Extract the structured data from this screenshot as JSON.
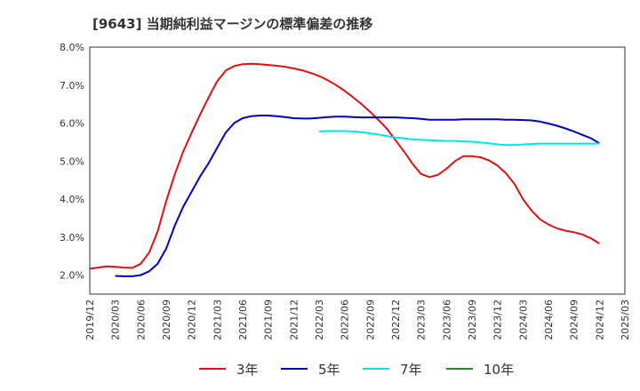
{
  "title": "[9643]  当期純利益マージンの標準偏差の推移",
  "chart_data": {
    "type": "line",
    "title": "[9643]  当期純利益マージンの標準偏差の推移",
    "xlabel": "",
    "ylabel": "",
    "ylim": [
      1.5,
      8.0
    ],
    "yticks": [
      2.0,
      3.0,
      4.0,
      5.0,
      6.0,
      7.0,
      8.0
    ],
    "ytick_labels": [
      "2.0%",
      "3.0%",
      "4.0%",
      "5.0%",
      "6.0%",
      "7.0%",
      "8.0%"
    ],
    "xticks": [
      "2019/12",
      "2020/03",
      "2020/06",
      "2020/09",
      "2020/12",
      "2021/03",
      "2021/06",
      "2021/09",
      "2021/12",
      "2022/03",
      "2022/06",
      "2022/09",
      "2022/12",
      "2023/03",
      "2023/06",
      "2023/09",
      "2023/12",
      "2024/03",
      "2024/06",
      "2024/09",
      "2024/12",
      "2025/03"
    ],
    "grid": true,
    "legend_position": "bottom",
    "series": [
      {
        "name": "3年",
        "color": "#dd1111",
        "x": [
          "2019/12",
          "2020/01",
          "2020/02",
          "2020/03",
          "2020/04",
          "2020/05",
          "2020/06",
          "2020/07",
          "2020/08",
          "2020/09",
          "2020/10",
          "2020/11",
          "2020/12",
          "2021/01",
          "2021/02",
          "2021/03",
          "2021/04",
          "2021/05",
          "2021/06",
          "2021/07",
          "2021/08",
          "2021/09",
          "2021/10",
          "2021/11",
          "2021/12",
          "2022/01",
          "2022/02",
          "2022/03",
          "2022/04",
          "2022/05",
          "2022/06",
          "2022/07",
          "2022/08",
          "2022/09",
          "2022/10",
          "2022/11",
          "2022/12",
          "2023/01",
          "2023/02",
          "2023/03",
          "2023/04",
          "2023/05",
          "2023/06",
          "2023/07",
          "2023/08",
          "2023/09",
          "2023/10",
          "2023/11",
          "2023/12",
          "2024/01",
          "2024/02",
          "2024/03",
          "2024/04",
          "2024/05",
          "2024/06",
          "2024/07",
          "2024/08",
          "2024/09",
          "2024/10",
          "2024/11",
          "2024/12"
        ],
        "values": [
          2.17,
          2.2,
          2.23,
          2.22,
          2.2,
          2.19,
          2.3,
          2.6,
          3.15,
          3.95,
          4.65,
          5.25,
          5.75,
          6.23,
          6.68,
          7.1,
          7.38,
          7.5,
          7.55,
          7.56,
          7.55,
          7.53,
          7.51,
          7.48,
          7.44,
          7.39,
          7.32,
          7.24,
          7.13,
          7.0,
          6.85,
          6.68,
          6.5,
          6.3,
          6.08,
          5.85,
          5.55,
          5.25,
          4.93,
          4.66,
          4.58,
          4.64,
          4.8,
          5.0,
          5.13,
          5.13,
          5.1,
          5.02,
          4.88,
          4.68,
          4.4,
          4.0,
          3.7,
          3.47,
          3.33,
          3.23,
          3.17,
          3.13,
          3.07,
          2.97,
          2.83
        ]
      },
      {
        "name": "5年",
        "color": "#0000bb",
        "x": [
          "2020/03",
          "2020/04",
          "2020/05",
          "2020/06",
          "2020/07",
          "2020/08",
          "2020/09",
          "2020/10",
          "2020/11",
          "2020/12",
          "2021/01",
          "2021/02",
          "2021/03",
          "2021/04",
          "2021/05",
          "2021/06",
          "2021/07",
          "2021/08",
          "2021/09",
          "2021/10",
          "2021/11",
          "2021/12",
          "2022/01",
          "2022/02",
          "2022/03",
          "2022/04",
          "2022/05",
          "2022/06",
          "2022/07",
          "2022/08",
          "2022/09",
          "2022/10",
          "2022/11",
          "2022/12",
          "2023/01",
          "2023/02",
          "2023/03",
          "2023/04",
          "2023/05",
          "2023/06",
          "2023/07",
          "2023/08",
          "2023/09",
          "2023/10",
          "2023/11",
          "2023/12",
          "2024/01",
          "2024/02",
          "2024/03",
          "2024/04",
          "2024/05",
          "2024/06",
          "2024/07",
          "2024/08",
          "2024/09",
          "2024/10",
          "2024/11",
          "2024/12"
        ],
        "values": [
          1.98,
          1.97,
          1.97,
          2.0,
          2.1,
          2.3,
          2.7,
          3.3,
          3.8,
          4.2,
          4.6,
          4.95,
          5.35,
          5.75,
          6.0,
          6.13,
          6.18,
          6.2,
          6.2,
          6.18,
          6.16,
          6.13,
          6.12,
          6.12,
          6.14,
          6.16,
          6.17,
          6.17,
          6.16,
          6.15,
          6.15,
          6.15,
          6.15,
          6.15,
          6.14,
          6.13,
          6.11,
          6.09,
          6.09,
          6.09,
          6.09,
          6.1,
          6.1,
          6.1,
          6.1,
          6.1,
          6.09,
          6.09,
          6.08,
          6.07,
          6.04,
          5.99,
          5.93,
          5.86,
          5.78,
          5.69,
          5.6,
          5.47
        ]
      },
      {
        "name": "7年",
        "color": "#00e5e5",
        "x": [
          "2022/03",
          "2022/04",
          "2022/05",
          "2022/06",
          "2022/07",
          "2022/08",
          "2022/09",
          "2022/10",
          "2022/11",
          "2022/12",
          "2023/01",
          "2023/02",
          "2023/03",
          "2023/04",
          "2023/05",
          "2023/06",
          "2023/07",
          "2023/08",
          "2023/09",
          "2023/10",
          "2023/11",
          "2023/12",
          "2024/01",
          "2024/02",
          "2024/03",
          "2024/04",
          "2024/05",
          "2024/06",
          "2024/07",
          "2024/08",
          "2024/09",
          "2024/10",
          "2024/11",
          "2024/12"
        ],
        "values": [
          5.78,
          5.79,
          5.79,
          5.79,
          5.78,
          5.76,
          5.73,
          5.7,
          5.66,
          5.62,
          5.6,
          5.57,
          5.56,
          5.55,
          5.54,
          5.53,
          5.53,
          5.52,
          5.51,
          5.49,
          5.47,
          5.44,
          5.42,
          5.42,
          5.44,
          5.45,
          5.46,
          5.46,
          5.46,
          5.46,
          5.46,
          5.46,
          5.46,
          5.46
        ]
      },
      {
        "name": "10年",
        "color": "#228b22",
        "x": [],
        "values": []
      }
    ]
  }
}
